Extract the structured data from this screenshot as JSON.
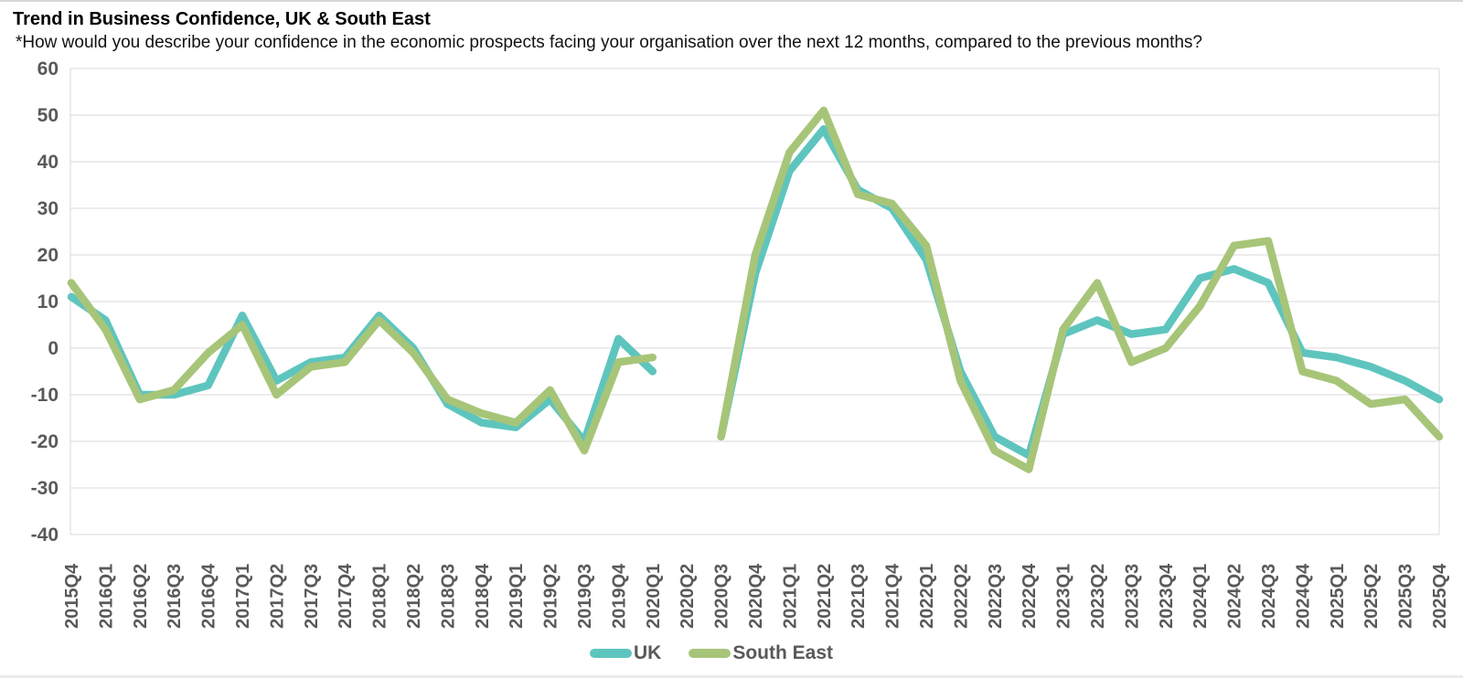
{
  "page": {
    "title": "Trend in Business Confidence, UK & South East",
    "subtitle": "*How would you describe your confidence in the economic prospects facing your organisation over the next 12 months, compared to the previous months?"
  },
  "chart_data": {
    "type": "line",
    "title": "Trend in Business Confidence, UK & South East",
    "categories": [
      "2015Q4",
      "2016Q1",
      "2016Q2",
      "2016Q3",
      "2016Q4",
      "2017Q1",
      "2017Q2",
      "2017Q3",
      "2017Q4",
      "2018Q1",
      "2018Q2",
      "2018Q3",
      "2018Q4",
      "2019Q1",
      "2019Q2",
      "2019Q3",
      "2019Q4",
      "2020Q1",
      "2020Q2",
      "2020Q3",
      "2020Q4",
      "2021Q1",
      "2021Q2",
      "2021Q3",
      "2021Q4",
      "2022Q1",
      "2022Q2",
      "2022Q3",
      "2022Q4",
      "2023Q1",
      "2023Q2",
      "2023Q3",
      "2023Q4",
      "2024Q1",
      "2024Q2",
      "2024Q3",
      "2024Q4",
      "2025Q1",
      "2025Q2",
      "2025Q3",
      "2025Q4"
    ],
    "series": [
      {
        "name": "UK",
        "color": "#5ec5be",
        "values": [
          11,
          6,
          -10,
          -10,
          -8,
          7,
          -7,
          -3,
          -2,
          7,
          0,
          -12,
          -16,
          -17,
          -11,
          -20,
          2,
          -5,
          null,
          -19,
          16,
          38,
          47,
          34,
          30,
          19,
          -5,
          -19,
          -23,
          3,
          6,
          3,
          4,
          15,
          17,
          14,
          -1,
          -2,
          -4,
          -7,
          -11
        ]
      },
      {
        "name": "South East",
        "color": "#a7c578",
        "values": [
          14,
          4,
          -11,
          -9,
          -1,
          5,
          -10,
          -4,
          -3,
          6,
          -1,
          -11,
          -14,
          -16,
          -9,
          -22,
          -3,
          -2,
          null,
          -19,
          20,
          42,
          51,
          33,
          31,
          22,
          -7,
          -22,
          -26,
          4,
          14,
          -3,
          0,
          9,
          22,
          23,
          -5,
          -7,
          -12,
          -11,
          -19
        ]
      }
    ],
    "xlabel": "",
    "ylabel": "",
    "ylim": [
      -40,
      60
    ],
    "yticks": [
      60,
      50,
      40,
      30,
      20,
      10,
      0,
      -10,
      -20,
      -30,
      -40
    ],
    "grid": "horizontal",
    "gridline_color": "#d9d9d9",
    "axis_label_color": "#595959",
    "legend_position": "bottom",
    "missing_data_categories": [
      "2020Q2"
    ]
  }
}
